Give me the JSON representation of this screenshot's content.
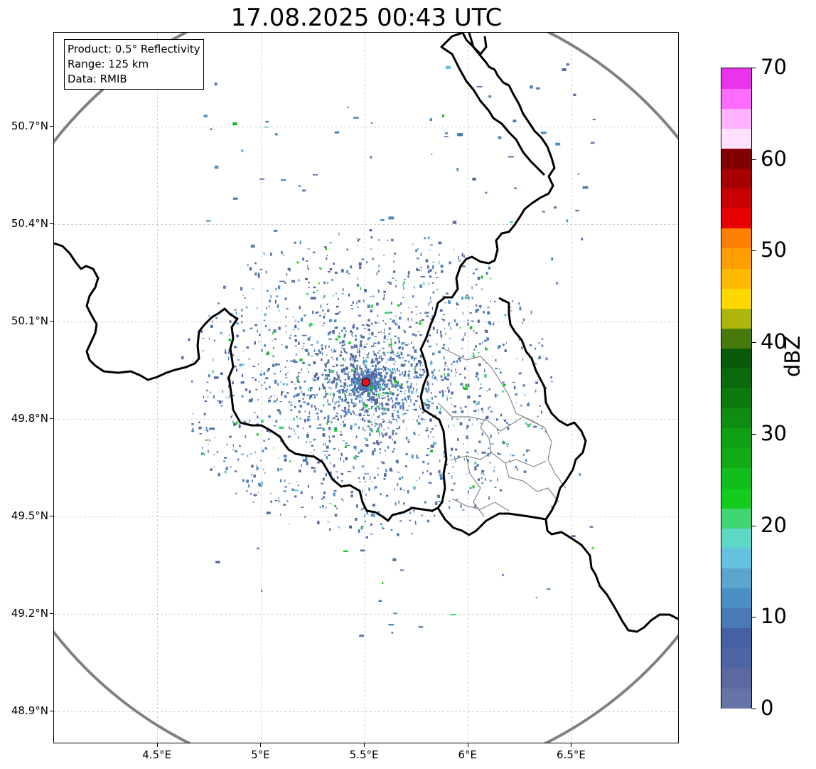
{
  "title": "17.08.2025 00:43 UTC",
  "info": {
    "product": "Product: 0.5° Reflectivity",
    "range": "Range: 125 km",
    "source": "Data: RMIB"
  },
  "axes": {
    "lat_ticks": [
      "50.7°N",
      "50.4°N",
      "50.1°N",
      "49.8°N",
      "49.5°N",
      "49.2°N",
      "48.9°N"
    ],
    "lat_values": [
      50.7,
      50.4,
      50.1,
      49.8,
      49.5,
      49.2,
      48.9
    ],
    "lon_ticks": [
      "4.5°E",
      "5°E",
      "5.5°E",
      "6°E",
      "6.5°E"
    ],
    "lon_values": [
      4.5,
      5.0,
      5.5,
      6.0,
      6.5
    ],
    "lat_range": [
      48.8,
      50.99
    ],
    "lon_range": [
      4.0,
      7.02
    ]
  },
  "radar_site": {
    "lat": 49.914,
    "lon": 5.505,
    "color": "#e8141c"
  },
  "colorbar": {
    "unit": "dBZ",
    "ticks": [
      "0",
      "10",
      "20",
      "30",
      "40",
      "50",
      "60",
      "70"
    ],
    "min": 0,
    "max": 70,
    "step": 2.5,
    "colors": [
      "#6673a6",
      "#5a6aa0",
      "#4f65a3",
      "#4561a5",
      "#4a7ab5",
      "#4b90c2",
      "#5aa6cd",
      "#64c1e0",
      "#5fd7c6",
      "#3fd673",
      "#14cc1e",
      "#12be1e",
      "#11ab14",
      "#10a013",
      "#0f8d12",
      "#0c7b0f",
      "#0b6a0b",
      "#085908",
      "#467a0b",
      "#aeb50b",
      "#ffd800",
      "#ffba00",
      "#ff9f00",
      "#ff8000",
      "#e60000",
      "#c80000",
      "#a60000",
      "#820000",
      "#ffe0ff",
      "#ffb3ff",
      "#ff6bff",
      "#eb33eb"
    ]
  },
  "layers": {
    "range_ring_color": "#808080",
    "border_color": "#000000",
    "province_color": "#888888",
    "grid_color": "#b0b0b0",
    "echo_base_color": "#5d78b0"
  }
}
